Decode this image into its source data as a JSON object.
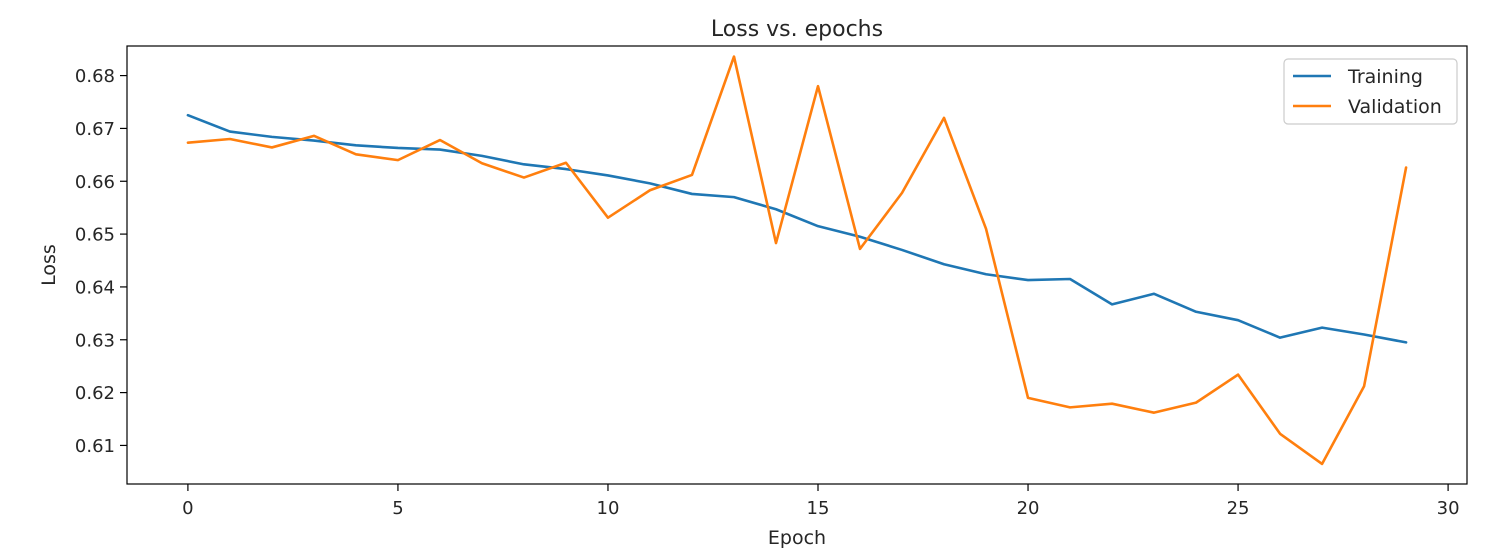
{
  "chart_data": {
    "type": "line",
    "title": "Loss vs. epochs",
    "xlabel": "Epoch",
    "ylabel": "Loss",
    "xlim": [
      -1.45,
      30.45
    ],
    "ylim": [
      0.6027,
      0.6856
    ],
    "xticks": [
      0,
      5,
      10,
      15,
      20,
      25,
      30
    ],
    "yticks": [
      0.61,
      0.62,
      0.63,
      0.64,
      0.65,
      0.66,
      0.67,
      0.68
    ],
    "grid": false,
    "legend_position": "top-right",
    "x": [
      0,
      1,
      2,
      3,
      4,
      5,
      6,
      7,
      8,
      9,
      10,
      11,
      12,
      13,
      14,
      15,
      16,
      17,
      18,
      19,
      20,
      21,
      22,
      23,
      24,
      25,
      26,
      27,
      28,
      29
    ],
    "series": [
      {
        "name": "Training",
        "color": "#1f77b4",
        "values": [
          0.6725,
          0.6694,
          0.6684,
          0.6677,
          0.6668,
          0.6663,
          0.666,
          0.6648,
          0.6632,
          0.6623,
          0.6611,
          0.6596,
          0.6576,
          0.657,
          0.6547,
          0.6515,
          0.6495,
          0.647,
          0.6443,
          0.6424,
          0.6413,
          0.6415,
          0.6367,
          0.6387,
          0.6353,
          0.6337,
          0.6304,
          0.6323,
          0.631,
          0.6295
        ]
      },
      {
        "name": "Validation",
        "color": "#ff7f0e",
        "values": [
          0.6673,
          0.668,
          0.6664,
          0.6686,
          0.6651,
          0.664,
          0.6678,
          0.6634,
          0.6607,
          0.6635,
          0.6531,
          0.6583,
          0.6612,
          0.6836,
          0.6483,
          0.678,
          0.6472,
          0.6578,
          0.672,
          0.651,
          0.619,
          0.6172,
          0.6179,
          0.6162,
          0.6181,
          0.6234,
          0.6122,
          0.6065,
          0.6212,
          0.6626
        ]
      }
    ]
  }
}
